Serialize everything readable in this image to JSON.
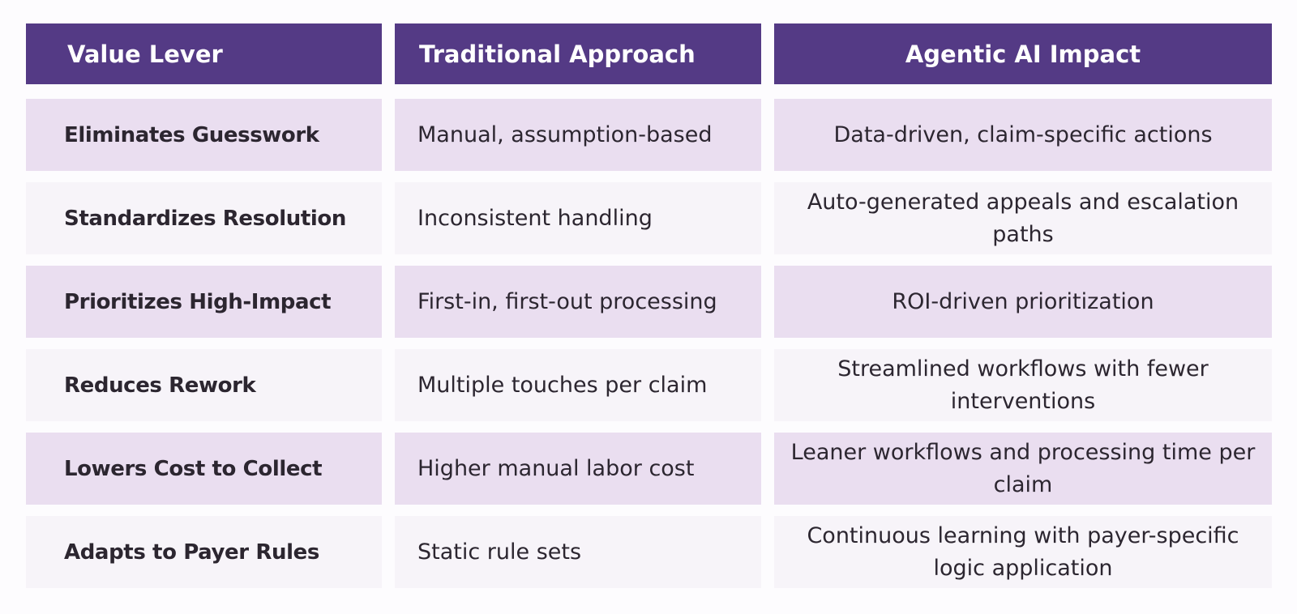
{
  "headers": {
    "value_lever": "Value Lever",
    "traditional": "Traditional Approach",
    "agentic": "Agentic AI Impact"
  },
  "rows": [
    {
      "lever": "Eliminates Guesswork",
      "traditional": "Manual, assumption-based",
      "agentic": "Data-driven, claim-specific actions"
    },
    {
      "lever": "Standardizes Resolution",
      "traditional": "Inconsistent handling",
      "agentic": "Auto-generated appeals and escalation paths"
    },
    {
      "lever": "Prioritizes High-Impact",
      "traditional": "First-in, first-out processing",
      "agentic": "ROI-driven prioritization"
    },
    {
      "lever": "Reduces Rework",
      "traditional": "Multiple touches per claim",
      "agentic": "Streamlined workflows with fewer interventions"
    },
    {
      "lever": "Lowers Cost to Collect",
      "traditional": "Higher manual labor cost",
      "agentic": "Leaner workflows and processing time per claim"
    },
    {
      "lever": "Adapts to Payer Rules",
      "traditional": "Static rule sets",
      "agentic": "Continuous learning with payer-specific logic application"
    }
  ],
  "colors": {
    "header_bg": "#543a85",
    "row_odd": "#eadef0",
    "row_even": "#f7f4f9",
    "text": "#2c2630"
  }
}
